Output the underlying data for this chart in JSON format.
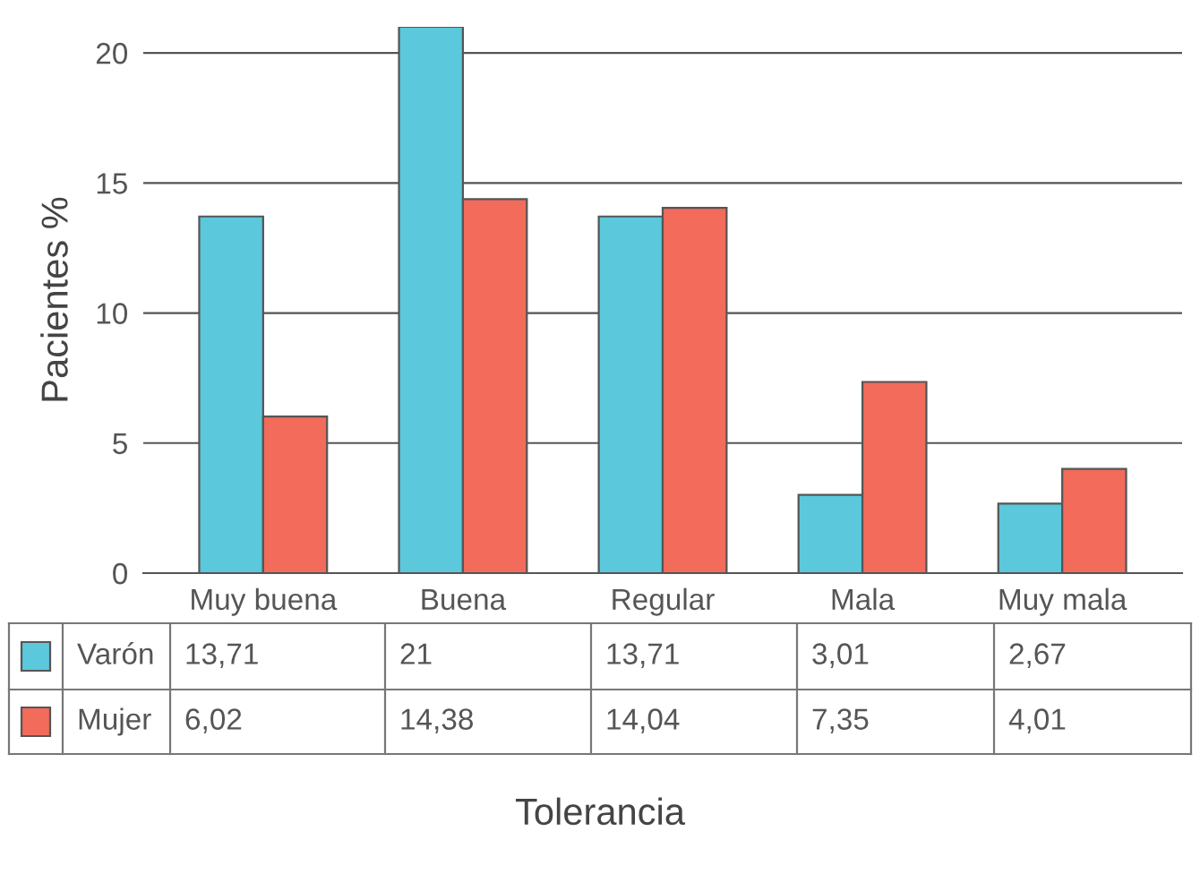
{
  "chart_data": {
    "type": "bar",
    "ylabel": "Pacientes %",
    "xlabel": "Tolerancia",
    "categories": [
      "Muy buena",
      "Buena",
      "Regular",
      "Mala",
      "Muy mala"
    ],
    "series": [
      {
        "name": "Varón",
        "color": "#5bc8dc",
        "values": [
          13.71,
          21,
          13.71,
          3.01,
          2.67
        ],
        "value_labels": [
          "13,71",
          "21",
          "13,71",
          "3,01",
          "2,67"
        ]
      },
      {
        "name": "Mujer",
        "color": "#f26b5b",
        "values": [
          6.02,
          14.38,
          14.04,
          7.35,
          4.01
        ],
        "value_labels": [
          "6,02",
          "14,38",
          "14,04",
          "7,35",
          "4,01"
        ]
      }
    ],
    "ylim": [
      0,
      21
    ],
    "yticks": [
      0,
      5,
      10,
      15,
      20
    ],
    "grid": "y",
    "legend": "bottom left"
  }
}
